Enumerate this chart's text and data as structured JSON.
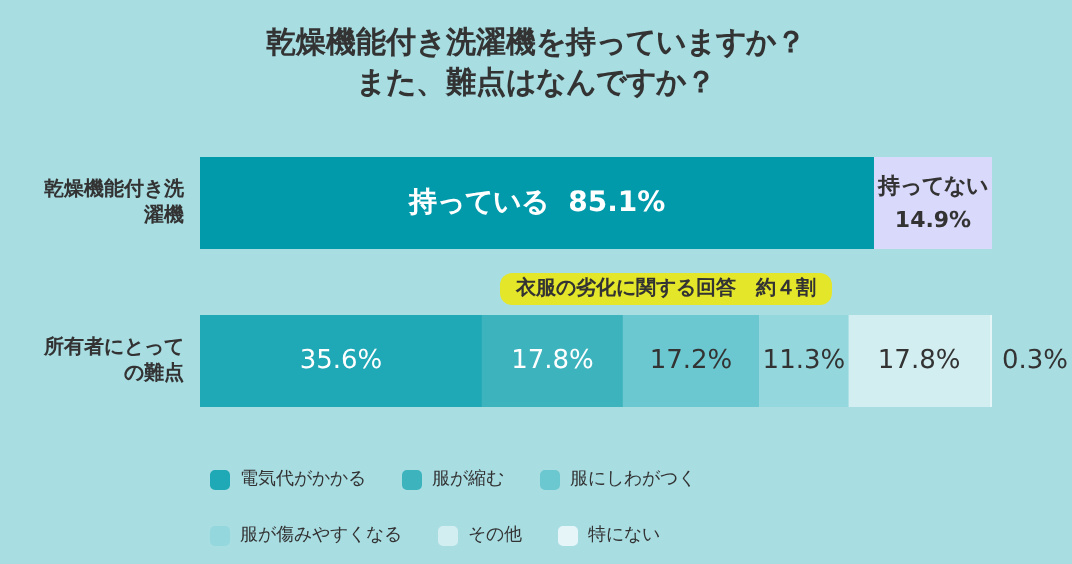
{
  "chart_data": {
    "type": "bar",
    "orientation": "horizontal",
    "stacked": true,
    "title": "乾燥機能付き洗濯機を持っていますか？また、難点はなんですか？",
    "categories": [
      "乾燥機能付き洗濯機",
      "所有者にとっての難点"
    ],
    "series": [
      {
        "name": "持っている",
        "color": "#009aaa",
        "values": [
          85.1,
          null
        ],
        "value_labels": [
          "85.1%",
          null
        ]
      },
      {
        "name": "持ってない",
        "color": "#d9d9fb",
        "values": [
          14.9,
          null
        ],
        "value_labels": [
          "14.9%",
          null
        ]
      },
      {
        "name": "電気代がかかる",
        "color": "#1fa8b5",
        "values": [
          null,
          35.6
        ],
        "value_labels": [
          null,
          "35.6%"
        ]
      },
      {
        "name": "服が縮む",
        "color": "#3db3be",
        "values": [
          null,
          17.8
        ],
        "value_labels": [
          null,
          "17.8%"
        ]
      },
      {
        "name": "服にしわがつく",
        "color": "#6cc8d0",
        "values": [
          null,
          17.2
        ],
        "value_labels": [
          null,
          "17.2%"
        ]
      },
      {
        "name": "服が傷みやすくなる",
        "color": "#94d7dd",
        "values": [
          null,
          11.3
        ],
        "value_labels": [
          null,
          "11.3%"
        ]
      },
      {
        "name": "その他",
        "color": "#d3eef1",
        "values": [
          null,
          17.8
        ],
        "value_labels": [
          null,
          "17.8%"
        ]
      },
      {
        "name": "特にない",
        "color": "#e6f6f8",
        "values": [
          null,
          0.3
        ],
        "value_labels": [
          null,
          "0.3%"
        ]
      }
    ],
    "xlim": [
      0,
      100
    ],
    "tick_labels": "y",
    "grid": false,
    "legend": "bottom",
    "annotations": [
      "衣服の劣化に関する回答　約４割"
    ]
  }
}
